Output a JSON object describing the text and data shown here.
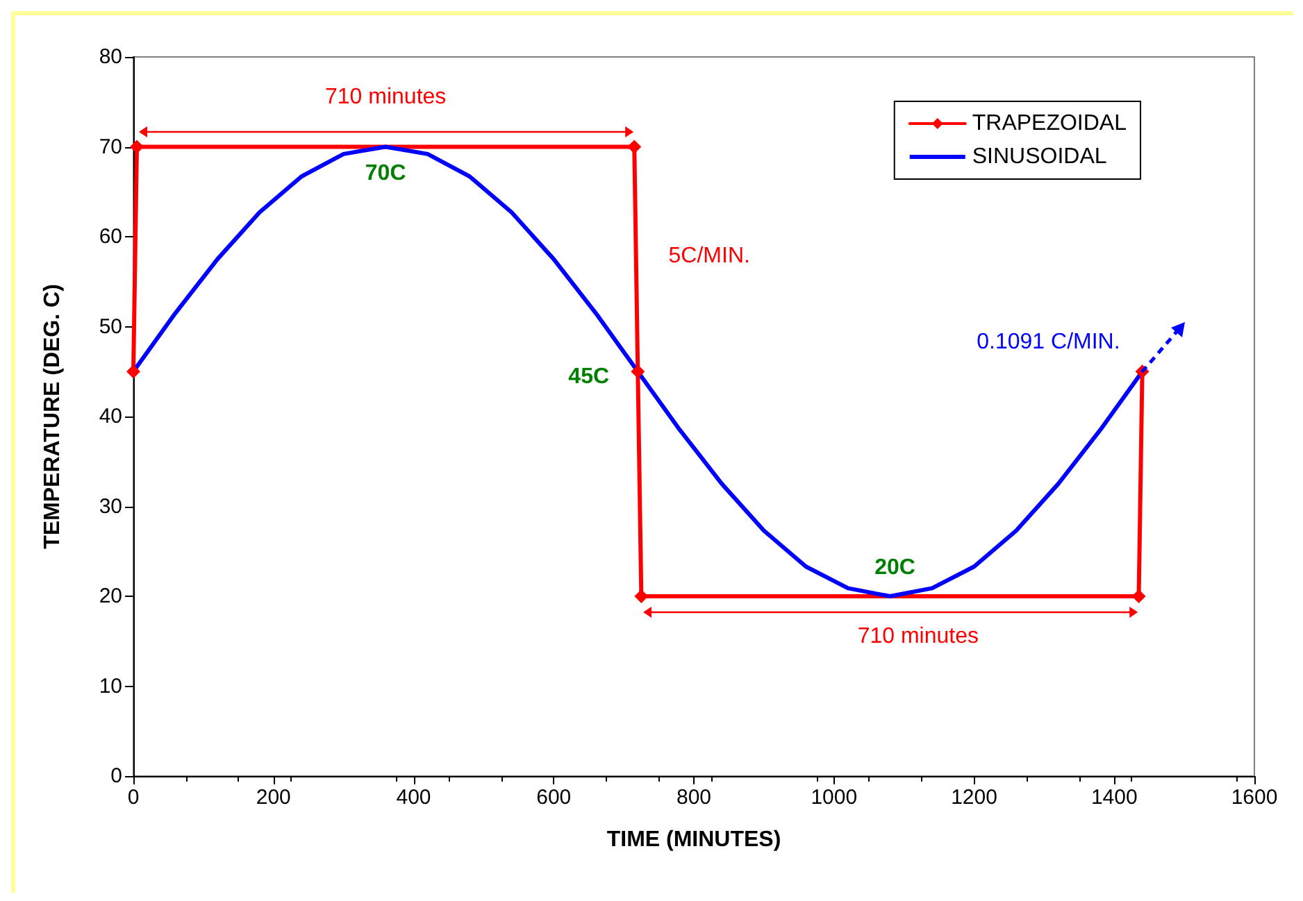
{
  "chart_data": {
    "type": "line",
    "xlabel": "TIME (MINUTES)",
    "ylabel": "TEMPERATURE (DEG. C)",
    "xlim": [
      0,
      1600
    ],
    "xticks": [
      0,
      200,
      400,
      600,
      800,
      1000,
      1200,
      1400,
      1600
    ],
    "ylim": [
      0,
      80
    ],
    "yticks": [
      0,
      10,
      20,
      30,
      40,
      50,
      60,
      70,
      80
    ],
    "grid": false,
    "legend": "top right",
    "series": [
      {
        "name": "TRAPEZOIDAL",
        "color": "#ff0000",
        "marker": "diamond",
        "x": [
          0,
          5,
          715,
          720,
          725,
          1435,
          1440
        ],
        "values": [
          45,
          70,
          70,
          45,
          20,
          20,
          45
        ]
      },
      {
        "name": "SINUSOIDAL",
        "color": "#0000ff",
        "marker": "none",
        "x": [
          0,
          60,
          120,
          180,
          240,
          300,
          360,
          420,
          480,
          540,
          600,
          660,
          720,
          780,
          840,
          900,
          960,
          1020,
          1080,
          1140,
          1200,
          1260,
          1320,
          1380,
          1440
        ],
        "values": [
          45,
          51.5,
          57.5,
          62.7,
          66.7,
          69.2,
          70,
          69.2,
          66.7,
          62.7,
          57.5,
          51.5,
          45,
          38.5,
          32.5,
          27.3,
          23.3,
          20.9,
          20,
          20.9,
          23.3,
          27.3,
          32.5,
          38.5,
          45
        ]
      }
    ],
    "annotations": [
      "710 minutes",
      "70C",
      "5C/MIN.",
      "45C",
      "20C",
      "710 minutes",
      "0.1091 C/MIN."
    ]
  }
}
